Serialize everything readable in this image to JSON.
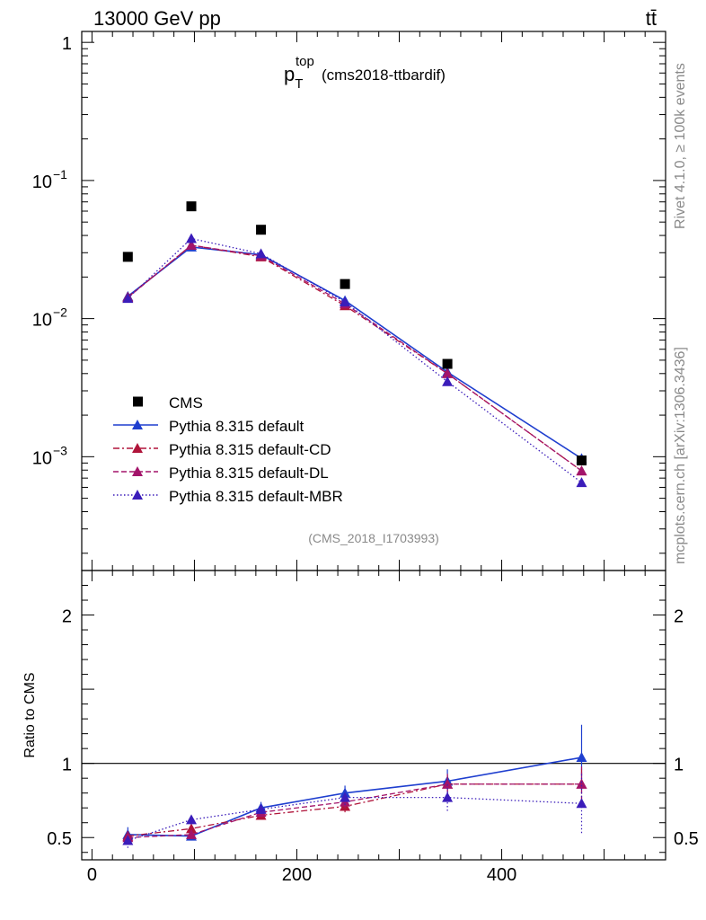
{
  "header": {
    "energy_label": "13000 GeV pp",
    "process_label": "tt̄"
  },
  "side_labels": {
    "rivet": "Rivet 4.1.0, ≥ 100k events",
    "mcplots": "mcplots.cern.ch [arXiv:1306.3436]"
  },
  "chart_data": {
    "type": "line",
    "title": {
      "main": "p",
      "sup": "top",
      "sub": "T",
      "suffix": "(cms2018-ttbardif)"
    },
    "analysis_tag": "(CMS_2018_I1703993)",
    "main_panel": {
      "yscale": "log",
      "ylim": [
        0.00015,
        1.2
      ],
      "yticks": [
        {
          "value": 1,
          "label": "1"
        },
        {
          "value": 0.1,
          "label": "10",
          "exp": "−1"
        },
        {
          "value": 0.01,
          "label": "10",
          "exp": "−2"
        },
        {
          "value": 0.001,
          "label": "10",
          "exp": "−3"
        }
      ]
    },
    "ratio_panel": {
      "ylabel": "Ratio to CMS",
      "ylim": [
        0.35,
        2.3
      ],
      "yticks": [
        {
          "value": 0.5,
          "label": "0.5"
        },
        {
          "value": 1,
          "label": "1"
        },
        {
          "value": 2,
          "label": "2"
        }
      ]
    },
    "xlim": [
      -10,
      560
    ],
    "xticks": [
      {
        "value": 0,
        "label": "0"
      },
      {
        "value": 200,
        "label": "200"
      },
      {
        "value": 400,
        "label": "400"
      }
    ],
    "x": [
      35,
      97,
      165,
      247,
      347,
      478
    ],
    "data": {
      "name": "CMS",
      "color": "#000000",
      "values": [
        0.028,
        0.065,
        0.044,
        0.0178,
        0.0047,
        0.00094
      ]
    },
    "series": [
      {
        "name": "Pythia 8.315 default",
        "color": "#1f3fcf",
        "dash": "",
        "values": [
          0.0145,
          0.033,
          0.029,
          0.0135,
          0.0041,
          0.00097
        ],
        "ratio": [
          0.52,
          0.51,
          0.7,
          0.8,
          0.88,
          1.04
        ],
        "err": [
          0.05,
          0.03,
          0.04,
          0.05,
          0.08,
          0.22
        ]
      },
      {
        "name": "Pythia 8.315 default-CD",
        "color": "#b0143a",
        "dash": "7,3,2,3",
        "values": [
          0.0143,
          0.034,
          0.028,
          0.0124,
          0.004,
          0.00079
        ],
        "ratio": [
          0.51,
          0.56,
          0.65,
          0.71,
          0.86,
          0.86
        ],
        "err": [
          0.04,
          0.03,
          0.03,
          0.04,
          0.06,
          0.12
        ]
      },
      {
        "name": "Pythia 8.315 default-DL",
        "color": "#a3146a",
        "dash": "6,3",
        "values": [
          0.0142,
          0.034,
          0.0285,
          0.0128,
          0.004,
          0.00079
        ],
        "ratio": [
          0.5,
          0.52,
          0.67,
          0.74,
          0.86,
          0.86
        ],
        "err": [
          0.04,
          0.03,
          0.03,
          0.04,
          0.07,
          0.12
        ]
      },
      {
        "name": "Pythia 8.315 default-MBR",
        "color": "#3b1dba",
        "dash": "1.5,2.5",
        "values": [
          0.014,
          0.038,
          0.0295,
          0.0132,
          0.0035,
          0.00065
        ],
        "ratio": [
          0.48,
          0.62,
          0.69,
          0.77,
          0.77,
          0.73
        ],
        "err": [
          0.05,
          0.03,
          0.03,
          0.05,
          0.09,
          0.2
        ]
      }
    ]
  }
}
